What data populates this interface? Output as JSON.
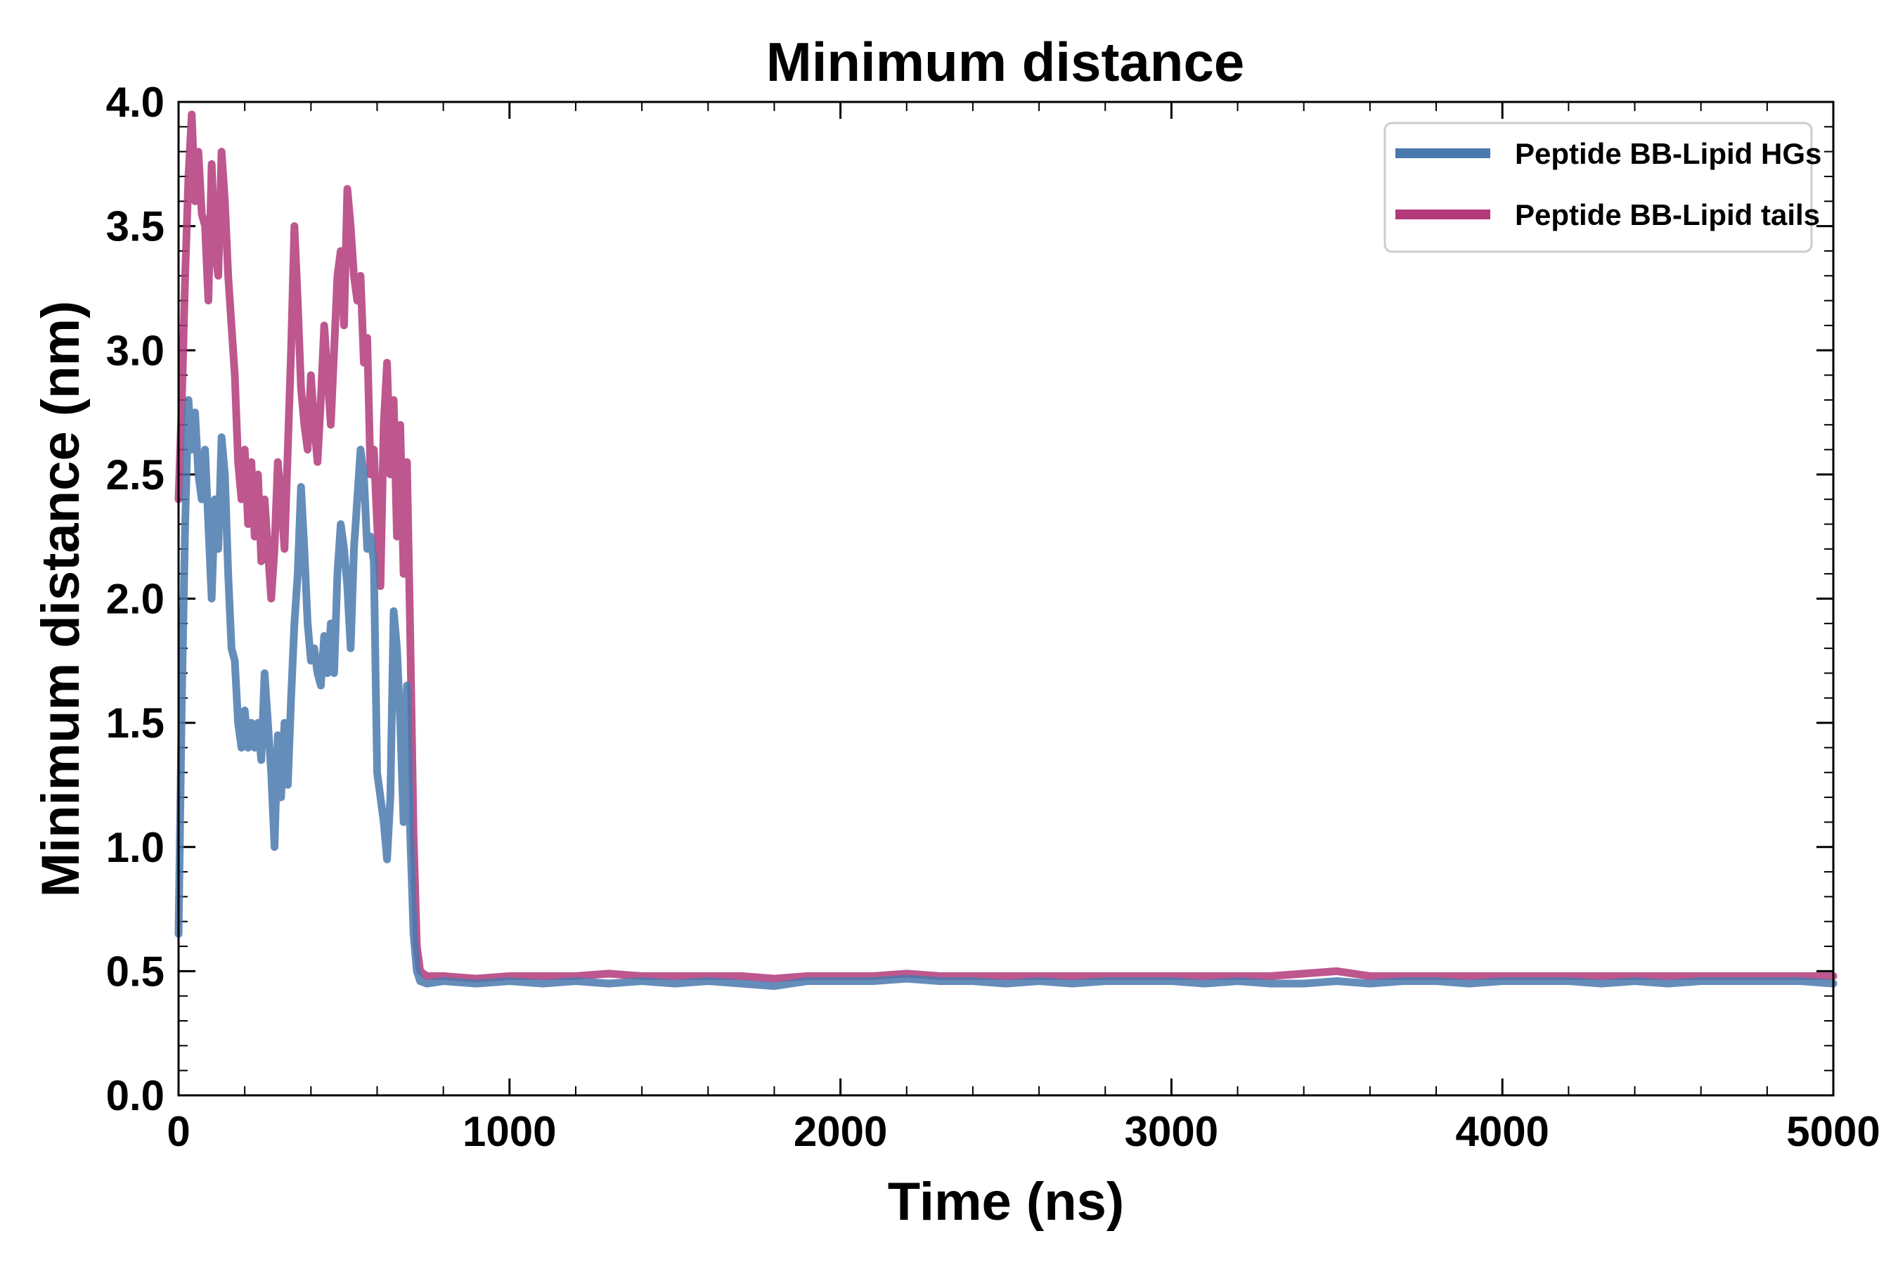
{
  "chart_data": {
    "type": "line",
    "title": "Minimum distance",
    "xlabel": "Time (ns)",
    "ylabel": "Minimum distance (nm)",
    "xlim": [
      0,
      5000
    ],
    "ylim": [
      0.0,
      4.0
    ],
    "xticks": [
      0,
      1000,
      2000,
      3000,
      4000,
      5000
    ],
    "yticks": [
      0.0,
      0.5,
      1.0,
      1.5,
      2.0,
      2.5,
      3.0,
      3.5,
      4.0
    ],
    "xtick_labels": [
      "0",
      "1000",
      "2000",
      "3000",
      "4000",
      "5000"
    ],
    "ytick_labels": [
      "0.0",
      "0.5",
      "1.0",
      "1.5",
      "2.0",
      "2.5",
      "3.0",
      "3.5",
      "4.0"
    ],
    "grid": false,
    "legend_position": "top-right",
    "series": [
      {
        "name": "Peptide BB-Lipid HGs",
        "color": "#4a79ae",
        "points": [
          [
            0,
            0.65
          ],
          [
            10,
            1.6
          ],
          [
            20,
            2.3
          ],
          [
            30,
            2.8
          ],
          [
            40,
            2.6
          ],
          [
            50,
            2.75
          ],
          [
            60,
            2.5
          ],
          [
            70,
            2.4
          ],
          [
            80,
            2.6
          ],
          [
            90,
            2.3
          ],
          [
            100,
            2.0
          ],
          [
            110,
            2.4
          ],
          [
            120,
            2.2
          ],
          [
            130,
            2.65
          ],
          [
            140,
            2.5
          ],
          [
            150,
            2.1
          ],
          [
            160,
            1.8
          ],
          [
            170,
            1.75
          ],
          [
            180,
            1.5
          ],
          [
            190,
            1.4
          ],
          [
            200,
            1.55
          ],
          [
            210,
            1.4
          ],
          [
            220,
            1.5
          ],
          [
            230,
            1.4
          ],
          [
            240,
            1.5
          ],
          [
            250,
            1.35
          ],
          [
            260,
            1.7
          ],
          [
            270,
            1.5
          ],
          [
            280,
            1.3
          ],
          [
            290,
            1.0
          ],
          [
            300,
            1.45
          ],
          [
            310,
            1.2
          ],
          [
            320,
            1.5
          ],
          [
            330,
            1.25
          ],
          [
            340,
            1.6
          ],
          [
            350,
            1.9
          ],
          [
            360,
            2.1
          ],
          [
            370,
            2.45
          ],
          [
            380,
            2.2
          ],
          [
            390,
            1.9
          ],
          [
            400,
            1.75
          ],
          [
            410,
            1.8
          ],
          [
            420,
            1.7
          ],
          [
            430,
            1.65
          ],
          [
            440,
            1.85
          ],
          [
            450,
            1.7
          ],
          [
            460,
            1.9
          ],
          [
            470,
            1.7
          ],
          [
            480,
            2.1
          ],
          [
            490,
            2.3
          ],
          [
            500,
            2.2
          ],
          [
            510,
            2.05
          ],
          [
            520,
            1.8
          ],
          [
            530,
            2.2
          ],
          [
            540,
            2.4
          ],
          [
            550,
            2.6
          ],
          [
            560,
            2.5
          ],
          [
            570,
            2.2
          ],
          [
            580,
            2.25
          ],
          [
            590,
            2.15
          ],
          [
            600,
            1.3
          ],
          [
            610,
            1.2
          ],
          [
            620,
            1.1
          ],
          [
            630,
            0.95
          ],
          [
            640,
            1.2
          ],
          [
            650,
            1.95
          ],
          [
            660,
            1.8
          ],
          [
            670,
            1.5
          ],
          [
            680,
            1.1
          ],
          [
            690,
            1.65
          ],
          [
            700,
            1.05
          ],
          [
            710,
            0.65
          ],
          [
            720,
            0.5
          ],
          [
            730,
            0.46
          ],
          [
            750,
            0.45
          ],
          [
            800,
            0.46
          ],
          [
            900,
            0.45
          ],
          [
            1000,
            0.46
          ],
          [
            1100,
            0.45
          ],
          [
            1200,
            0.46
          ],
          [
            1300,
            0.45
          ],
          [
            1400,
            0.46
          ],
          [
            1500,
            0.45
          ],
          [
            1600,
            0.46
          ],
          [
            1700,
            0.45
          ],
          [
            1800,
            0.44
          ],
          [
            1900,
            0.46
          ],
          [
            2000,
            0.46
          ],
          [
            2100,
            0.46
          ],
          [
            2200,
            0.47
          ],
          [
            2300,
            0.46
          ],
          [
            2400,
            0.46
          ],
          [
            2500,
            0.45
          ],
          [
            2600,
            0.46
          ],
          [
            2700,
            0.45
          ],
          [
            2800,
            0.46
          ],
          [
            2900,
            0.46
          ],
          [
            3000,
            0.46
          ],
          [
            3100,
            0.45
          ],
          [
            3200,
            0.46
          ],
          [
            3300,
            0.45
          ],
          [
            3400,
            0.45
          ],
          [
            3500,
            0.46
          ],
          [
            3600,
            0.45
          ],
          [
            3700,
            0.46
          ],
          [
            3800,
            0.46
          ],
          [
            3900,
            0.45
          ],
          [
            4000,
            0.46
          ],
          [
            4100,
            0.46
          ],
          [
            4200,
            0.46
          ],
          [
            4300,
            0.45
          ],
          [
            4400,
            0.46
          ],
          [
            4500,
            0.45
          ],
          [
            4600,
            0.46
          ],
          [
            4700,
            0.46
          ],
          [
            4800,
            0.46
          ],
          [
            4900,
            0.46
          ],
          [
            5000,
            0.45
          ]
        ]
      },
      {
        "name": "Peptide BB-Lipid tails",
        "color": "#b23a7a",
        "points": [
          [
            0,
            2.4
          ],
          [
            10,
            2.8
          ],
          [
            20,
            3.3
          ],
          [
            30,
            3.7
          ],
          [
            40,
            3.95
          ],
          [
            50,
            3.6
          ],
          [
            60,
            3.8
          ],
          [
            70,
            3.55
          ],
          [
            80,
            3.5
          ],
          [
            90,
            3.2
          ],
          [
            100,
            3.75
          ],
          [
            110,
            3.4
          ],
          [
            120,
            3.3
          ],
          [
            130,
            3.8
          ],
          [
            140,
            3.6
          ],
          [
            150,
            3.3
          ],
          [
            160,
            3.1
          ],
          [
            170,
            2.9
          ],
          [
            180,
            2.55
          ],
          [
            190,
            2.4
          ],
          [
            200,
            2.6
          ],
          [
            210,
            2.3
          ],
          [
            220,
            2.55
          ],
          [
            230,
            2.25
          ],
          [
            240,
            2.5
          ],
          [
            250,
            2.15
          ],
          [
            260,
            2.4
          ],
          [
            270,
            2.2
          ],
          [
            280,
            2.0
          ],
          [
            290,
            2.2
          ],
          [
            300,
            2.55
          ],
          [
            310,
            2.4
          ],
          [
            320,
            2.2
          ],
          [
            330,
            2.6
          ],
          [
            340,
            3.0
          ],
          [
            350,
            3.5
          ],
          [
            360,
            3.2
          ],
          [
            370,
            2.85
          ],
          [
            380,
            2.7
          ],
          [
            390,
            2.6
          ],
          [
            400,
            2.9
          ],
          [
            410,
            2.7
          ],
          [
            420,
            2.55
          ],
          [
            430,
            2.8
          ],
          [
            440,
            3.1
          ],
          [
            450,
            2.9
          ],
          [
            460,
            2.7
          ],
          [
            470,
            3.0
          ],
          [
            480,
            3.3
          ],
          [
            490,
            3.4
          ],
          [
            500,
            3.1
          ],
          [
            510,
            3.65
          ],
          [
            520,
            3.5
          ],
          [
            530,
            3.3
          ],
          [
            540,
            3.2
          ],
          [
            550,
            3.3
          ],
          [
            560,
            2.95
          ],
          [
            570,
            3.05
          ],
          [
            580,
            2.5
          ],
          [
            590,
            2.6
          ],
          [
            600,
            2.3
          ],
          [
            610,
            2.05
          ],
          [
            620,
            2.7
          ],
          [
            630,
            2.95
          ],
          [
            640,
            2.5
          ],
          [
            650,
            2.8
          ],
          [
            660,
            2.25
          ],
          [
            670,
            2.7
          ],
          [
            680,
            2.1
          ],
          [
            690,
            2.55
          ],
          [
            700,
            1.85
          ],
          [
            710,
            1.05
          ],
          [
            720,
            0.6
          ],
          [
            730,
            0.5
          ],
          [
            750,
            0.48
          ],
          [
            800,
            0.48
          ],
          [
            900,
            0.47
          ],
          [
            1000,
            0.48
          ],
          [
            1100,
            0.48
          ],
          [
            1200,
            0.48
          ],
          [
            1300,
            0.49
          ],
          [
            1400,
            0.48
          ],
          [
            1500,
            0.48
          ],
          [
            1600,
            0.48
          ],
          [
            1700,
            0.48
          ],
          [
            1800,
            0.47
          ],
          [
            1900,
            0.48
          ],
          [
            2000,
            0.48
          ],
          [
            2100,
            0.48
          ],
          [
            2200,
            0.49
          ],
          [
            2300,
            0.48
          ],
          [
            2400,
            0.48
          ],
          [
            2500,
            0.48
          ],
          [
            2600,
            0.48
          ],
          [
            2700,
            0.48
          ],
          [
            2800,
            0.48
          ],
          [
            2900,
            0.48
          ],
          [
            3000,
            0.48
          ],
          [
            3100,
            0.48
          ],
          [
            3200,
            0.48
          ],
          [
            3300,
            0.48
          ],
          [
            3400,
            0.49
          ],
          [
            3500,
            0.5
          ],
          [
            3600,
            0.48
          ],
          [
            3700,
            0.48
          ],
          [
            3800,
            0.48
          ],
          [
            3900,
            0.48
          ],
          [
            4000,
            0.48
          ],
          [
            4100,
            0.48
          ],
          [
            4200,
            0.48
          ],
          [
            4300,
            0.48
          ],
          [
            4400,
            0.48
          ],
          [
            4500,
            0.48
          ],
          [
            4600,
            0.48
          ],
          [
            4700,
            0.48
          ],
          [
            4800,
            0.48
          ],
          [
            4900,
            0.48
          ],
          [
            5000,
            0.48
          ]
        ]
      }
    ]
  }
}
